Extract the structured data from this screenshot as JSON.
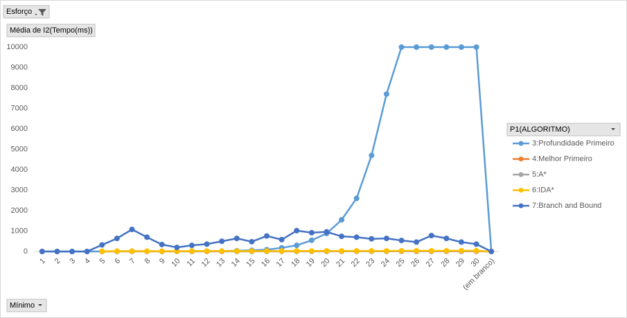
{
  "pivot": {
    "filter_field": "Esforço",
    "value_field": "Média de I2(Tempo(ms))",
    "legend_field": "P1(ALGORITMO)",
    "axis_field": "Mínimo"
  },
  "chart_data": {
    "type": "line",
    "categories": [
      "1",
      "2",
      "3",
      "4",
      "5",
      "6",
      "7",
      "8",
      "9",
      "10",
      "11",
      "12",
      "13",
      "14",
      "15",
      "16",
      "17",
      "18",
      "19",
      "20",
      "21",
      "22",
      "23",
      "24",
      "25",
      "26",
      "27",
      "28",
      "29",
      "30",
      "(em branco)"
    ],
    "ylim": [
      0,
      10000
    ],
    "yticks": [
      0,
      1000,
      2000,
      3000,
      4000,
      5000,
      6000,
      7000,
      8000,
      9000,
      10000
    ],
    "grid": false,
    "series": [
      {
        "name": "3:Profundidade Primeiro",
        "color": "#5b9bd5",
        "values": [
          0,
          0,
          0,
          0,
          5,
          10,
          15,
          10,
          10,
          10,
          20,
          20,
          20,
          40,
          60,
          90,
          180,
          300,
          550,
          880,
          1550,
          2600,
          4700,
          7700,
          10000,
          10000,
          10000,
          10000,
          10000,
          10000,
          0
        ]
      },
      {
        "name": "4:Melhor Primeiro",
        "color": "#ed7d31",
        "values": [
          null,
          null,
          null,
          null,
          2,
          3,
          3,
          3,
          3,
          3,
          4,
          4,
          4,
          5,
          5,
          5,
          6,
          6,
          6,
          6,
          7,
          7,
          7,
          8,
          8,
          8,
          8,
          9,
          9,
          9,
          0
        ]
      },
      {
        "name": "5:A*",
        "color": "#a5a5a5",
        "values": [
          null,
          null,
          null,
          null,
          3,
          4,
          4,
          4,
          4,
          5,
          5,
          5,
          6,
          6,
          6,
          7,
          7,
          7,
          8,
          8,
          8,
          9,
          9,
          9,
          10,
          10,
          10,
          11,
          11,
          11,
          0
        ]
      },
      {
        "name": "6:IDA*",
        "color": "#ffc000",
        "values": [
          null,
          null,
          null,
          null,
          10,
          15,
          15,
          15,
          15,
          15,
          20,
          20,
          20,
          20,
          20,
          25,
          25,
          25,
          25,
          30,
          30,
          30,
          30,
          30,
          35,
          35,
          35,
          35,
          40,
          40,
          0
        ]
      },
      {
        "name": "7:Branch and Bound",
        "color": "#4472c4",
        "values": [
          0,
          0,
          0,
          0,
          320,
          640,
          1080,
          700,
          340,
          200,
          300,
          360,
          500,
          640,
          480,
          760,
          580,
          1020,
          920,
          960,
          740,
          700,
          620,
          640,
          540,
          460,
          780,
          640,
          460,
          360,
          0
        ]
      }
    ]
  }
}
